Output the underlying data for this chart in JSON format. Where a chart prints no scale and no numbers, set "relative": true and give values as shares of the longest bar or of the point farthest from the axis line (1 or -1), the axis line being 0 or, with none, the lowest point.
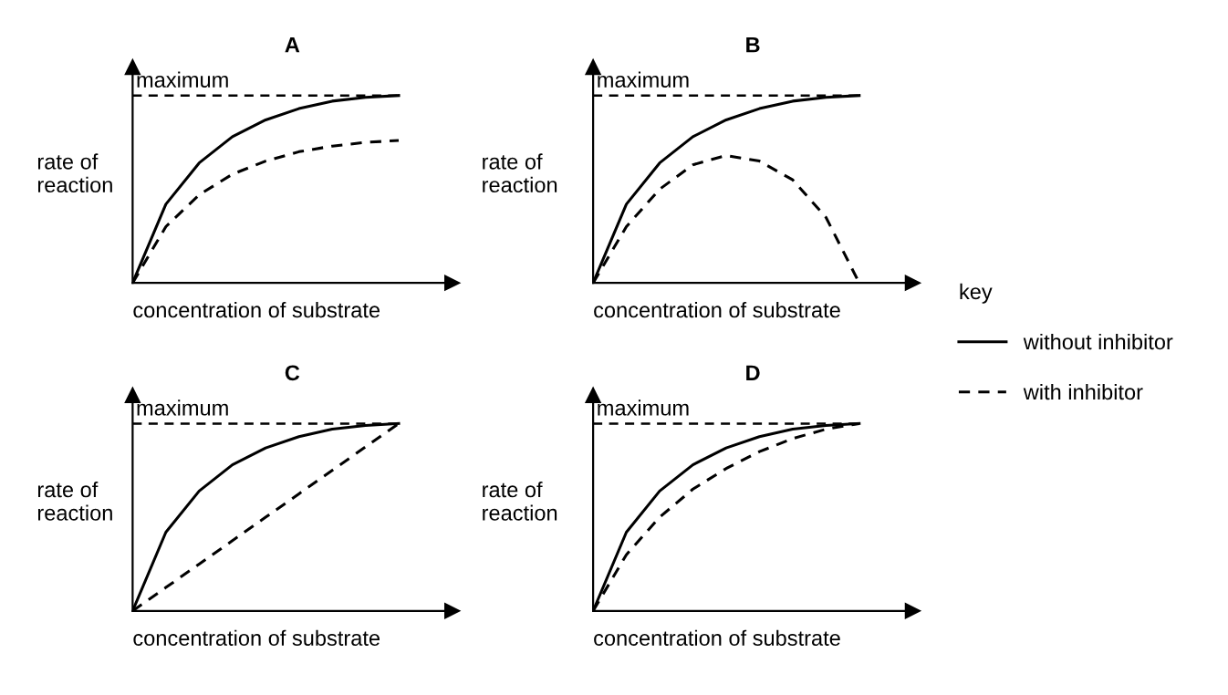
{
  "chart_data": [
    {
      "type": "line",
      "title": "A",
      "xlabel": "concentration of substrate",
      "ylabel": "rate of reaction",
      "relative": true,
      "categories": [
        null,
        null,
        null,
        null,
        null,
        null,
        null,
        null,
        null
      ],
      "legend": "right",
      "legend_title": "key",
      "ref_lines": [
        {
          "axis": "y",
          "value": 1,
          "label": "maximum",
          "color": "#000000",
          "line_style": "dashed"
        }
      ],
      "series": [
        {
          "name": "without inhibitor",
          "color": "#000000",
          "line_style": "solid",
          "values": [
            0,
            0.42,
            0.64,
            0.78,
            0.87,
            0.93,
            0.97,
            0.99,
            1
          ]
        },
        {
          "name": "with inhibitor",
          "color": "#000000",
          "line_style": "dashed",
          "values": [
            0,
            0.3,
            0.47,
            0.58,
            0.65,
            0.7,
            0.73,
            0.75,
            0.76
          ]
        }
      ]
    },
    {
      "type": "line",
      "title": "B",
      "xlabel": "concentration of substrate",
      "ylabel": "rate of reaction",
      "relative": true,
      "categories": [
        null,
        null,
        null,
        null,
        null,
        null,
        null,
        null,
        null
      ],
      "ref_lines": [
        {
          "axis": "y",
          "value": 1,
          "label": "maximum",
          "color": "#000000",
          "line_style": "dashed"
        }
      ],
      "series": [
        {
          "color": "#000000",
          "line_style": "solid",
          "values": [
            0,
            0.42,
            0.64,
            0.78,
            0.87,
            0.93,
            0.97,
            0.99,
            1
          ]
        },
        {
          "color": "#000000",
          "line_style": "dashed",
          "values": [
            0,
            0.3,
            0.5,
            0.63,
            0.68,
            0.65,
            0.55,
            0.35,
            0
          ]
        }
      ]
    },
    {
      "type": "line",
      "title": "C",
      "xlabel": "concentration of substrate",
      "ylabel": "rate of reaction",
      "relative": true,
      "categories": [
        null,
        null,
        null,
        null,
        null,
        null,
        null,
        null,
        null
      ],
      "ref_lines": [
        {
          "axis": "y",
          "value": 1,
          "label": "maximum",
          "color": "#000000",
          "line_style": "dashed"
        }
      ],
      "series": [
        {
          "color": "#000000",
          "line_style": "solid",
          "values": [
            0,
            0.42,
            0.64,
            0.78,
            0.87,
            0.93,
            0.97,
            0.99,
            1
          ]
        },
        {
          "color": "#000000",
          "line_style": "dashed",
          "values": [
            0,
            0.125,
            0.25,
            0.375,
            0.5,
            0.625,
            0.75,
            0.875,
            1
          ]
        }
      ]
    },
    {
      "type": "line",
      "title": "D",
      "xlabel": "concentration of substrate",
      "ylabel": "rate of reaction",
      "relative": true,
      "categories": [
        null,
        null,
        null,
        null,
        null,
        null,
        null,
        null,
        null
      ],
      "ref_lines": [
        {
          "axis": "y",
          "value": 1,
          "label": "maximum",
          "color": "#000000",
          "line_style": "dashed"
        }
      ],
      "series": [
        {
          "color": "#000000",
          "line_style": "solid",
          "values": [
            0,
            0.42,
            0.64,
            0.78,
            0.87,
            0.93,
            0.97,
            0.99,
            1
          ]
        },
        {
          "color": "#000000",
          "line_style": "dashed",
          "values": [
            0,
            0.3,
            0.5,
            0.65,
            0.76,
            0.85,
            0.92,
            0.97,
            1
          ]
        }
      ]
    }
  ]
}
